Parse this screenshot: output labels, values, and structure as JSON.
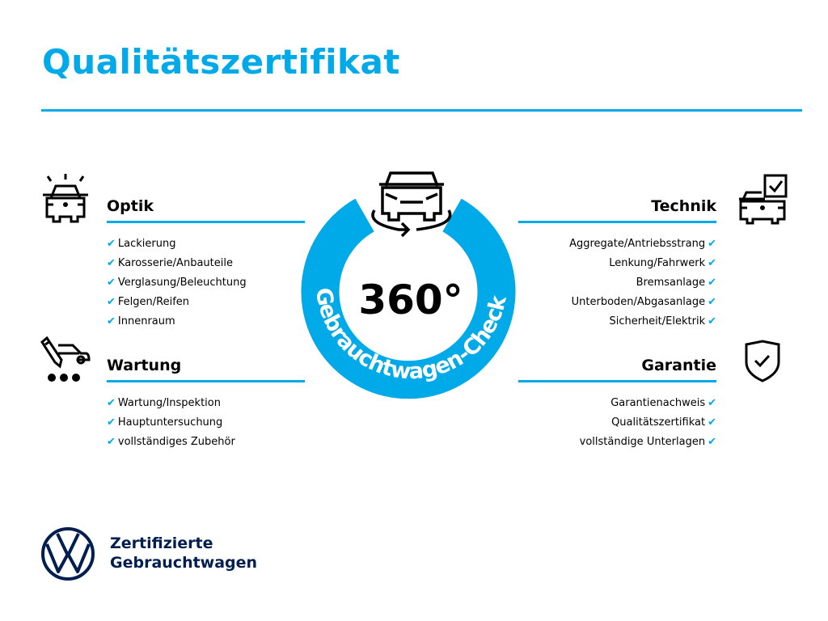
{
  "title": "Qualitätszertifikat",
  "center": {
    "number": "360°",
    "ring_text": "Gebrauchtwagen-Check"
  },
  "sections": {
    "optik": {
      "title": "Optik",
      "items": [
        "Lackierung",
        "Karosserie/Anbauteile",
        "Verglasung/Beleuchtung",
        "Felgen/Reifen",
        "Innenraum"
      ]
    },
    "wartung": {
      "title": "Wartung",
      "items": [
        "Wartung/Inspektion",
        "Hauptuntersuchung",
        "vollständiges Zubehör"
      ]
    },
    "technik": {
      "title": "Technik",
      "items": [
        "Aggregate/Antriebsstrang",
        "Lenkung/Fahrwerk",
        "Bremsanlage",
        "Unterboden/Abgasanlage",
        "Sicherheit/Elektrik"
      ]
    },
    "garantie": {
      "title": "Garantie",
      "items": [
        "Garantienachweis",
        "Qualitätszertifikat",
        "vollständige Unterlagen"
      ]
    }
  },
  "footer": {
    "line1": "Zertifizierte",
    "line2": "Gebrauchtwagen"
  },
  "colors": {
    "accent": "#00a9e8",
    "brand": "#001e50"
  },
  "check_glyph": "✔"
}
